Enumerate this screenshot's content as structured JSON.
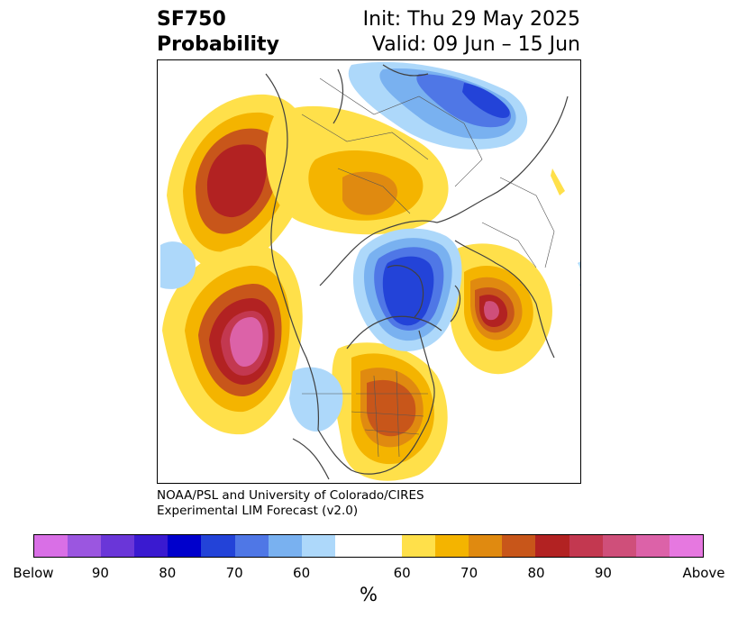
{
  "header": {
    "variable": "SF750",
    "product": "Probability",
    "init": "Init: Thu 29 May 2025",
    "valid": "Valid: 09 Jun – 15 Jun"
  },
  "credit": {
    "line1": "NOAA/PSL and University of Colorado/CIRES",
    "line2": "Experimental LIM Forecast (v2.0)"
  },
  "colorbar": {
    "unit": "%",
    "ticks": [
      "Below",
      "90",
      "80",
      "70",
      "60",
      "60",
      "70",
      "80",
      "90",
      "Above"
    ],
    "colors_below": [
      "#d96fe6",
      "#9b56e0",
      "#6a36d8",
      "#3a1ad0",
      "#0000cc",
      "#2343d8",
      "#4f77e6",
      "#79b1f0",
      "#add8fa"
    ],
    "color_neutral": "#ffffff",
    "colors_above": [
      "#ffe04a",
      "#f4b400",
      "#e08a10",
      "#c8561a",
      "#b22222",
      "#c33850",
      "#cf4f7a",
      "#dc62a8",
      "#e678e0"
    ]
  },
  "map": {
    "projection": "north-polar-stereographic",
    "features": [
      {
        "name": "anomaly-west-pacific",
        "sign": "above",
        "peak_pct": 80
      },
      {
        "name": "anomaly-central-pacific",
        "sign": "above",
        "peak_pct": 90
      },
      {
        "name": "anomaly-eastern-us",
        "sign": "above",
        "peak_pct": 75
      },
      {
        "name": "anomaly-northern-eurasia",
        "sign": "above",
        "peak_pct": 70
      },
      {
        "name": "anomaly-north-atlantic",
        "sign": "above",
        "peak_pct": 85
      },
      {
        "name": "anomaly-greenland",
        "sign": "below",
        "peak_pct": 80
      },
      {
        "name": "anomaly-siberia",
        "sign": "below",
        "peak_pct": 75
      },
      {
        "name": "anomaly-western-us",
        "sign": "below",
        "peak_pct": 60
      },
      {
        "name": "anomaly-pacific-edge",
        "sign": "below",
        "peak_pct": 60
      }
    ]
  }
}
